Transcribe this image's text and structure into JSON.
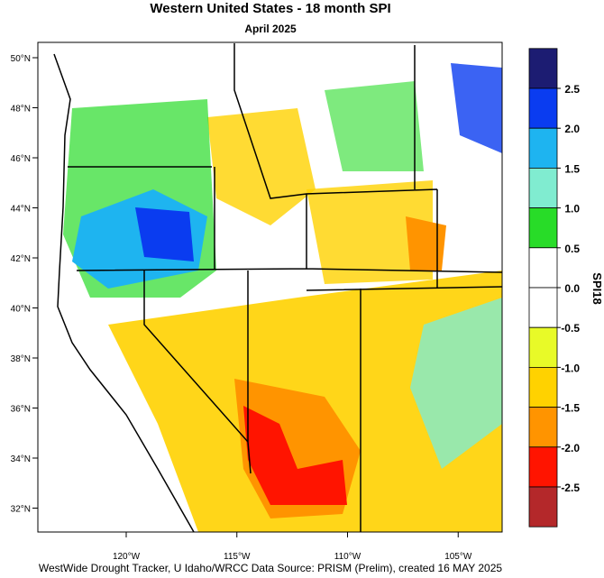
{
  "title": "Western United States - 18 month SPI",
  "subtitle": "April 2025",
  "footer": "WestWide Drought Tracker, U Idaho/WRCC Data Source: PRISM (Prelim), created 16 MAY 2025",
  "map": {
    "lat_ticks": [
      {
        "value": 50,
        "label": "50°N"
      },
      {
        "value": 48,
        "label": "48°N"
      },
      {
        "value": 46,
        "label": "46°N"
      },
      {
        "value": 44,
        "label": "44°N"
      },
      {
        "value": 42,
        "label": "42°N"
      },
      {
        "value": 40,
        "label": "40°N"
      },
      {
        "value": 38,
        "label": "38°N"
      },
      {
        "value": 36,
        "label": "36°N"
      },
      {
        "value": 34,
        "label": "34°N"
      },
      {
        "value": 32,
        "label": "32°N"
      }
    ],
    "lon_ticks": [
      {
        "value": -120,
        "label": "120°W"
      },
      {
        "value": -115,
        "label": "115°W"
      },
      {
        "value": -110,
        "label": "110°W"
      },
      {
        "value": -105,
        "label": "105°W"
      }
    ]
  },
  "colorbar": {
    "title": "SPI18",
    "levels": [
      {
        "value": 2.5,
        "label": "2.5"
      },
      {
        "value": 2.0,
        "label": "2.0"
      },
      {
        "value": 1.5,
        "label": "1.5"
      },
      {
        "value": 1.0,
        "label": "1.0"
      },
      {
        "value": 0.5,
        "label": "0.5"
      },
      {
        "value": 0.0,
        "label": "0.0"
      },
      {
        "value": -0.5,
        "label": "-0.5"
      },
      {
        "value": -1.0,
        "label": "-1.0"
      },
      {
        "value": -1.5,
        "label": "-1.5"
      },
      {
        "value": -2.0,
        "label": "-2.0"
      },
      {
        "value": -2.5,
        "label": "-2.5"
      }
    ],
    "colors": [
      "#1c1c72",
      "#0a3cf0",
      "#1eb4f0",
      "#80ecd0",
      "#28dc28",
      "#ffffff",
      "#ffffff",
      "#e8fa28",
      "#ffd200",
      "#ff9400",
      "#ff1400",
      "#b4282a"
    ]
  }
}
